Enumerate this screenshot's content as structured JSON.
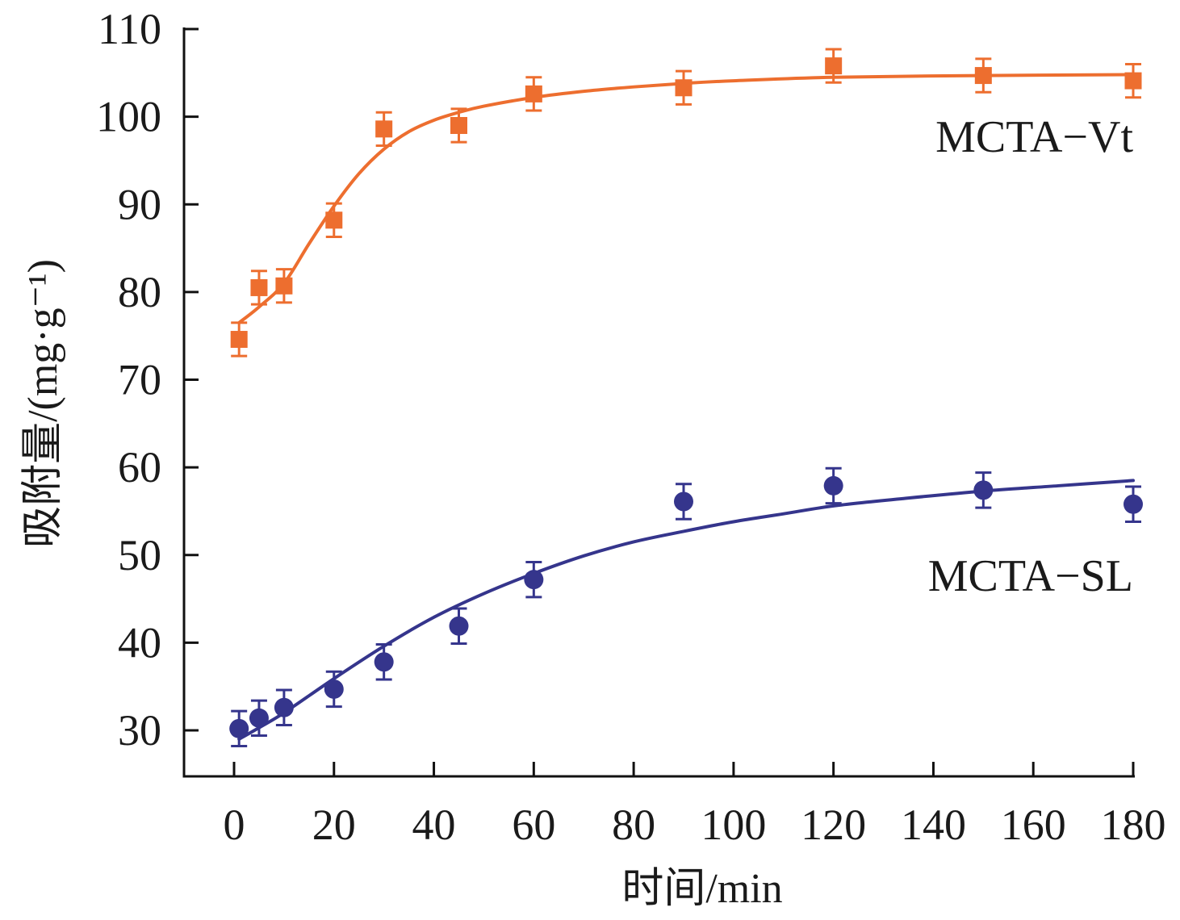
{
  "chart_data": {
    "type": "scatter",
    "title": "",
    "xlabel": "时间/min",
    "ylabel": "吸附量/(mg·g⁻¹)",
    "xlim": [
      -10,
      180
    ],
    "ylim": [
      25,
      110
    ],
    "xticks": [
      0,
      20,
      40,
      60,
      80,
      100,
      120,
      140,
      160,
      180
    ],
    "yticks": [
      30,
      40,
      50,
      60,
      70,
      80,
      90,
      100,
      110
    ],
    "grid": false,
    "legend": "inline labels near curves",
    "series": [
      {
        "name": "MCTA-Vt",
        "label": "MCTA−Vt",
        "marker": "square",
        "color": "#ED6E2F",
        "x": [
          1,
          5,
          10,
          20,
          30,
          45,
          60,
          90,
          120,
          150,
          180
        ],
        "y": [
          74.6,
          80.5,
          80.7,
          88.2,
          98.6,
          99.0,
          102.6,
          103.3,
          105.8,
          104.7,
          104.1
        ],
        "error": [
          1.9,
          1.9,
          1.9,
          1.9,
          1.9,
          1.9,
          1.9,
          1.9,
          1.9,
          1.9,
          1.9
        ],
        "fit": {
          "x": [
            1,
            5,
            10,
            15,
            20,
            25,
            30,
            35,
            40,
            45,
            50,
            60,
            70,
            80,
            90,
            100,
            120,
            150,
            180
          ],
          "y": [
            76.5,
            78.3,
            81.0,
            85.5,
            89.8,
            93.5,
            96.3,
            98.3,
            99.6,
            100.5,
            101.2,
            102.2,
            102.9,
            103.4,
            103.8,
            104.1,
            104.5,
            104.7,
            104.8
          ]
        }
      },
      {
        "name": "MCTA-SL",
        "label": "MCTA−SL",
        "marker": "circle",
        "color": "#35358C",
        "x": [
          1,
          5,
          10,
          20,
          30,
          45,
          60,
          90,
          120,
          150,
          180
        ],
        "y": [
          30.2,
          31.4,
          32.6,
          34.7,
          37.8,
          41.9,
          47.2,
          56.1,
          57.9,
          57.4,
          55.8
        ],
        "error": [
          2.0,
          2.0,
          2.0,
          2.0,
          2.0,
          2.0,
          2.0,
          2.0,
          2.0,
          2.0,
          2.0
        ],
        "fit": {
          "x": [
            1,
            5,
            10,
            20,
            30,
            40,
            50,
            60,
            70,
            80,
            90,
            100,
            110,
            120,
            135,
            150,
            165,
            180
          ],
          "y": [
            29.0,
            30.3,
            32.0,
            35.9,
            39.6,
            42.9,
            45.6,
            47.9,
            49.9,
            51.5,
            52.7,
            53.8,
            54.7,
            55.6,
            56.5,
            57.3,
            57.9,
            58.5
          ]
        }
      }
    ]
  }
}
